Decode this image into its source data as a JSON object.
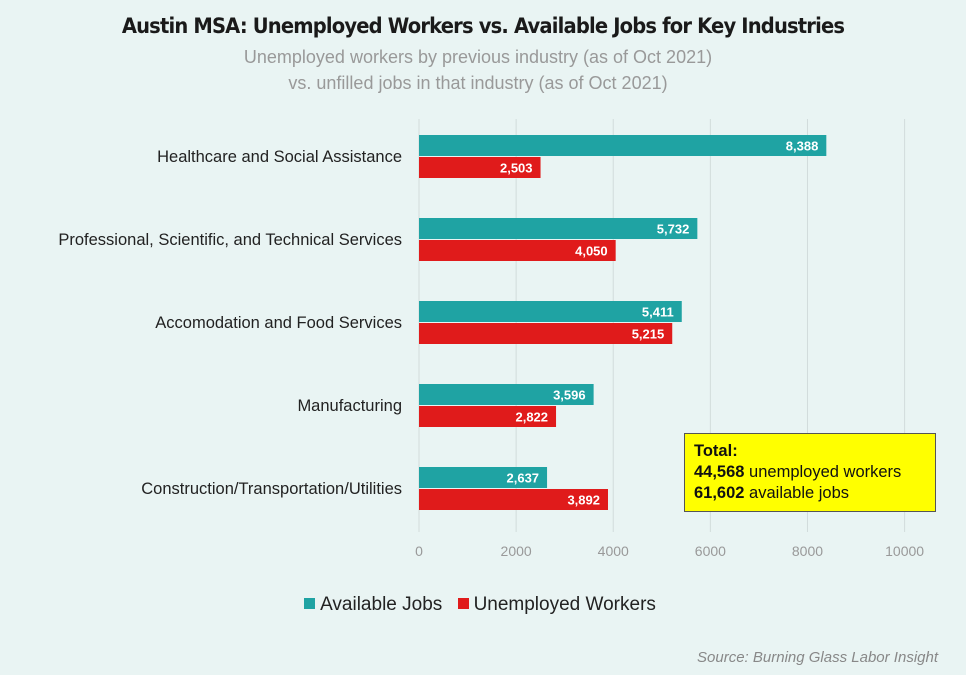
{
  "title": "Austin MSA: Unemployed Workers vs. Available Jobs for Key Industries",
  "subtitle_line1": "Unemployed workers by previous industry (as of Oct 2021)",
  "subtitle_line2": "vs. unfilled jobs in that industry (as of Oct 2021)",
  "colors": {
    "available": "#1fa3a3",
    "unemployed": "#e01b1b",
    "background": "#e9f4f3",
    "grid": "#d2dcdb",
    "box": "#ffff00"
  },
  "chart_data": {
    "type": "bar",
    "orientation": "horizontal",
    "categories": [
      "Healthcare and Social Assistance",
      "Professional, Scientific, and Technical Services",
      "Accomodation and Food Services",
      "Manufacturing",
      "Construction/Transportation/Utilities"
    ],
    "series": [
      {
        "name": "Available Jobs",
        "values": [
          8388,
          5732,
          5411,
          3596,
          2637
        ],
        "labels": [
          "8,388",
          "5,732",
          "5,411",
          "3,596",
          "2,637"
        ]
      },
      {
        "name": "Unemployed Workers",
        "values": [
          2503,
          4050,
          5215,
          2822,
          3892
        ],
        "labels": [
          "2,503",
          "4,050",
          "5,215",
          "2,822",
          "3,892"
        ]
      }
    ],
    "xlim": [
      0,
      10000
    ],
    "xticks": [
      0,
      2000,
      4000,
      6000,
      8000,
      10000
    ],
    "xtick_labels": [
      "0",
      "2000",
      "4000",
      "6000",
      "8000",
      "10000"
    ],
    "grid": true,
    "legend_position": "bottom"
  },
  "total_box": {
    "heading": "Total:",
    "unemployed_value": "44,568",
    "unemployed_text": " unemployed workers",
    "jobs_value": "61,602",
    "jobs_text": " available jobs"
  },
  "source": "Source: Burning Glass Labor Insight"
}
